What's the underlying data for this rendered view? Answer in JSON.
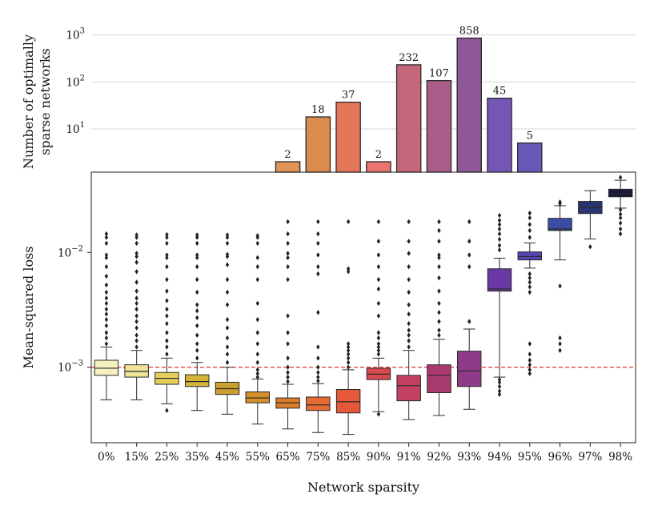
{
  "chart_data": [
    {
      "type": "bar",
      "ylabel": "Number of optimally sparse networks",
      "ylabel_lines": [
        "Number of optimally",
        "sparse networks"
      ],
      "yscale": "log",
      "ylim": [
        1.2,
        1300
      ],
      "grid": true,
      "yticks": [
        {
          "value": 10,
          "base": "10",
          "exp": "1"
        },
        {
          "value": 100,
          "base": "10",
          "exp": "2"
        },
        {
          "value": 1000,
          "base": "10",
          "exp": "3"
        }
      ],
      "categories": [
        "0%",
        "15%",
        "25%",
        "35%",
        "45%",
        "55%",
        "65%",
        "75%",
        "85%",
        "90%",
        "91%",
        "92%",
        "93%",
        "94%",
        "95%",
        "96%",
        "97%",
        "98%"
      ],
      "values": [
        null,
        null,
        null,
        null,
        null,
        null,
        2,
        18,
        37,
        2,
        232,
        107,
        858,
        45,
        5,
        null,
        null,
        null
      ],
      "data_labels": [
        "",
        "",
        "",
        "",
        "",
        "",
        "2",
        "18",
        "37",
        "2",
        "232",
        "107",
        "858",
        "45",
        "5",
        "",
        "",
        ""
      ]
    },
    {
      "type": "box",
      "ylabel": "Mean-squared loss",
      "xlabel": "Network sparsity",
      "yscale": "log",
      "ylim": [
        0.00022,
        0.05
      ],
      "grid": false,
      "yticks": [
        {
          "value": 0.001,
          "base": "10",
          "exp": "−3"
        },
        {
          "value": 0.01,
          "base": "10",
          "exp": "−2"
        }
      ],
      "reference_line": {
        "value": 0.001,
        "color": "#e41a1c",
        "style": "dashed"
      },
      "categories": [
        "0%",
        "15%",
        "25%",
        "35%",
        "45%",
        "55%",
        "65%",
        "75%",
        "85%",
        "90%",
        "91%",
        "92%",
        "93%",
        "94%",
        "95%",
        "96%",
        "97%",
        "98%"
      ],
      "boxes": [
        {
          "q1": 0.00085,
          "median": 0.00098,
          "q3": 0.00115,
          "whislo": 0.00052,
          "whishi": 0.0015,
          "fliers": [
            0.0016,
            0.0018,
            0.002,
            0.0023,
            0.0026,
            0.0029,
            0.0032,
            0.0036,
            0.004,
            0.0045,
            0.0052,
            0.0062,
            0.0075,
            0.009,
            0.0095,
            0.012,
            0.0135,
            0.0145
          ]
        },
        {
          "q1": 0.00082,
          "median": 0.00092,
          "q3": 0.00105,
          "whislo": 0.00052,
          "whishi": 0.0014,
          "fliers": [
            0.0015,
            0.0017,
            0.0019,
            0.0022,
            0.0025,
            0.0028,
            0.0032,
            0.0036,
            0.004,
            0.0046,
            0.0055,
            0.0068,
            0.0082,
            0.0092,
            0.0098,
            0.012,
            0.0135,
            0.0142
          ]
        },
        {
          "q1": 0.00071,
          "median": 0.0008,
          "q3": 0.0009,
          "whislo": 0.00048,
          "whishi": 0.0012,
          "fliers": [
            0.00042,
            0.0013,
            0.0015,
            0.0017,
            0.002,
            0.0024,
            0.0028,
            0.0032,
            0.0038,
            0.0046,
            0.0058,
            0.0075,
            0.009,
            0.0095,
            0.012,
            0.0135,
            0.0143
          ]
        },
        {
          "q1": 0.00068,
          "median": 0.00075,
          "q3": 0.00086,
          "whislo": 0.00042,
          "whishi": 0.0011,
          "fliers": [
            0.0012,
            0.0014,
            0.0016,
            0.0019,
            0.0023,
            0.0027,
            0.0031,
            0.0035,
            0.0045,
            0.0058,
            0.0075,
            0.009,
            0.0095,
            0.012,
            0.0135,
            0.0142
          ]
        },
        {
          "q1": 0.00058,
          "median": 0.00065,
          "q3": 0.00074,
          "whislo": 0.00039,
          "whishi": 0.001,
          "fliers": [
            0.0011,
            0.0013,
            0.0015,
            0.0018,
            0.0022,
            0.0026,
            0.0035,
            0.0045,
            0.0058,
            0.0078,
            0.0092,
            0.0096,
            0.012,
            0.0135,
            0.0142
          ]
        },
        {
          "q1": 0.00049,
          "median": 0.00054,
          "q3": 0.00061,
          "whislo": 0.00032,
          "whishi": 0.00079,
          "fliers": [
            0.00082,
            0.00088,
            0.00095,
            0.0011,
            0.0013,
            0.0016,
            0.002,
            0.0026,
            0.0036,
            0.0058,
            0.0075,
            0.009,
            0.012,
            0.0135,
            0.014
          ]
        },
        {
          "q1": 0.00044,
          "median": 0.00049,
          "q3": 0.00054,
          "whislo": 0.00029,
          "whishi": 0.00071,
          "fliers": [
            0.00075,
            0.00082,
            0.0009,
            0.001,
            0.0012,
            0.0016,
            0.002,
            0.0028,
            0.0058,
            0.0075,
            0.009,
            0.0098,
            0.012,
            0.0145,
            0.0185
          ]
        },
        {
          "q1": 0.00042,
          "median": 0.00047,
          "q3": 0.00055,
          "whislo": 0.00027,
          "whishi": 0.00072,
          "fliers": [
            0.00076,
            0.00082,
            0.0009,
            0.001,
            0.0012,
            0.0015,
            0.003,
            0.0065,
            0.0075,
            0.0095,
            0.012,
            0.0145,
            0.0185
          ]
        },
        {
          "q1": 0.0004,
          "median": 0.0005,
          "q3": 0.00064,
          "whislo": 0.00026,
          "whishi": 0.00095,
          "fliers": [
            0.001,
            0.0011,
            0.0012,
            0.0013,
            0.0014,
            0.0015,
            0.0016,
            0.0068,
            0.0072,
            0.0185
          ]
        },
        {
          "q1": 0.00078,
          "median": 0.00087,
          "q3": 0.00098,
          "whislo": 0.00041,
          "whishi": 0.0012,
          "fliers": [
            0.00039,
            0.0013,
            0.0014,
            0.0015,
            0.0016,
            0.0018,
            0.002,
            0.0028,
            0.0036,
            0.0048,
            0.0058,
            0.0075,
            0.0095,
            0.0125,
            0.0185
          ]
        },
        {
          "q1": 0.00051,
          "median": 0.00069,
          "q3": 0.00085,
          "whislo": 0.00035,
          "whishi": 0.0014,
          "fliers": [
            0.0015,
            0.0017,
            0.0019,
            0.0021,
            0.0024,
            0.0029,
            0.0035,
            0.0045,
            0.0058,
            0.0075,
            0.0098,
            0.0125,
            0.0185
          ]
        },
        {
          "q1": 0.0006,
          "median": 0.00085,
          "q3": 0.00105,
          "whislo": 0.00038,
          "whishi": 0.00175,
          "fliers": [
            0.0019,
            0.0021,
            0.0025,
            0.003,
            0.0036,
            0.0046,
            0.006,
            0.0075,
            0.009,
            0.0095,
            0.0125,
            0.0155,
            0.0185
          ]
        },
        {
          "q1": 0.00068,
          "median": 0.00093,
          "q3": 0.00138,
          "whislo": 0.00043,
          "whishi": 0.00215,
          "fliers": [
            0.0025,
            0.0075,
            0.0095,
            0.0125,
            0.0185
          ]
        },
        {
          "q1": 0.0046,
          "median": 0.0048,
          "q3": 0.0072,
          "whislo": 0.00082,
          "whishi": 0.0089,
          "fliers": [
            0.00058,
            0.00062,
            0.00068,
            0.00074,
            0.00078,
            0.0105,
            0.0115,
            0.013,
            0.0145,
            0.016,
            0.0175,
            0.019,
            0.021
          ]
        },
        {
          "q1": 0.0086,
          "median": 0.0092,
          "q3": 0.0101,
          "whislo": 0.0073,
          "whishi": 0.0121,
          "fliers": [
            0.00088,
            0.00095,
            0.00105,
            0.00115,
            0.0013,
            0.0016,
            0.0045,
            0.005,
            0.0055,
            0.006,
            0.0065,
            0.0135,
            0.0155,
            0.0175,
            0.02,
            0.022
          ]
        },
        {
          "q1": 0.0155,
          "median": 0.016,
          "q3": 0.0198,
          "whislo": 0.0086,
          "whishi": 0.0255,
          "fliers": [
            0.0014,
            0.0016,
            0.0018,
            0.0051,
            0.0265,
            0.0275
          ]
        },
        {
          "q1": 0.0218,
          "median": 0.0245,
          "q3": 0.0278,
          "whislo": 0.0131,
          "whishi": 0.0345,
          "fliers": [
            0.0112
          ]
        },
        {
          "q1": 0.0305,
          "median": 0.0325,
          "q3": 0.0355,
          "whislo": 0.0243,
          "whishi": 0.0425,
          "fliers": [
            0.0145,
            0.016,
            0.018,
            0.02,
            0.0215,
            0.0235,
            0.045
          ]
        }
      ]
    }
  ],
  "palette": [
    "#f6f0be",
    "#efe49a",
    "#e2cd5b",
    "#d6b43b",
    "#cca02e",
    "#d28f28",
    "#dc7d2a",
    "#e56a33",
    "#e5583a",
    "#d84a50",
    "#c24062",
    "#a93a6d",
    "#8e3b8a",
    "#6839a3",
    "#5644b6",
    "#3c4ca2",
    "#283570",
    "#171a38"
  ],
  "bar_palette": [
    "#f6f0be",
    "#efe49a",
    "#e2cd5b",
    "#d6b43b",
    "#cca02e",
    "#d28f28",
    "#e19355",
    "#dc8b4f",
    "#e5765a",
    "#e8756f",
    "#c5667a",
    "#a85e88",
    "#8d5798",
    "#7556b7",
    "#6759b8",
    "#3c4ca2",
    "#283570",
    "#171a38"
  ]
}
